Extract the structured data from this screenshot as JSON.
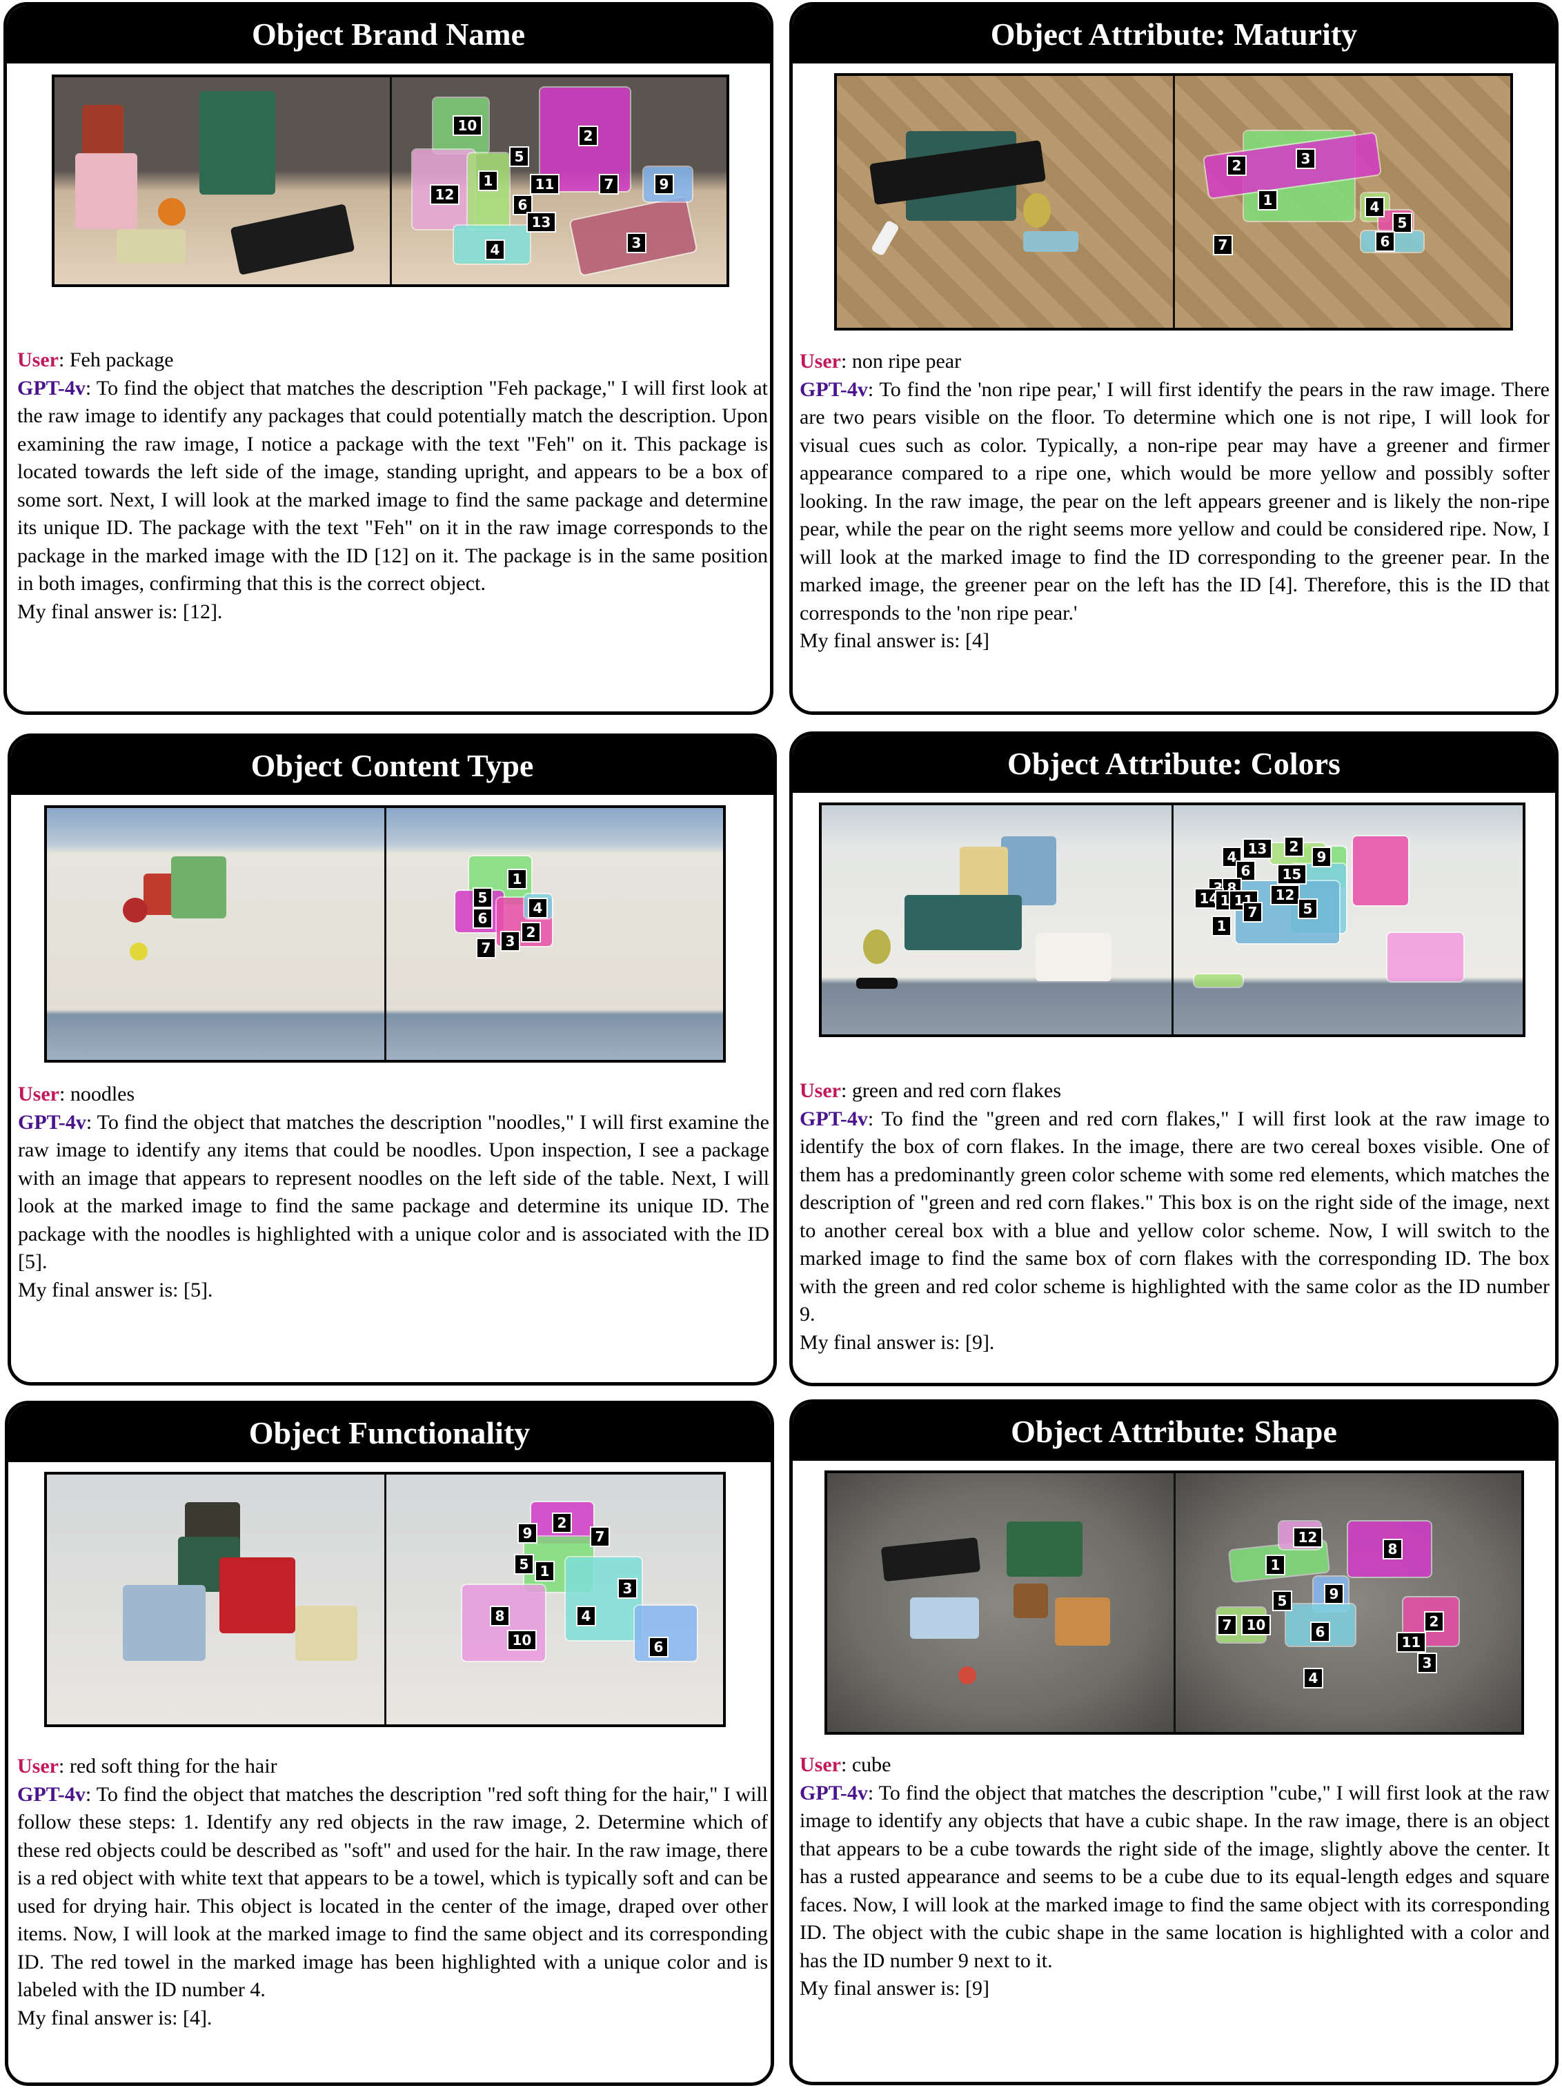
{
  "labels": {
    "user": "User",
    "gpt": "GPT-4v"
  },
  "panels": {
    "p1": {
      "title": "Object Brand Name",
      "query": "Feh package",
      "response": "To find the object that matches the description \"Feh package,\" I will first look at the raw image to identify any packages that could potentially match the description. Upon examining the raw image, I notice a package with the text \"Feh\" on it. This package is located towards the left side of the image, standing upright, and appears to be a box of some sort. Next, I will look at the marked image to find the same package and determine its unique ID. The package with the text \"Feh\" on it in the raw image corresponds to the package in the marked image with the ID [12] on it. The package is in the same position in both images, confirming that this is the correct object.",
      "final": "My final answer is: [12].",
      "ids": [
        "10",
        "2",
        "5",
        "1",
        "11",
        "7",
        "9",
        "12",
        "6",
        "13",
        "4",
        "3"
      ]
    },
    "p2": {
      "title": "Object Attribute: Maturity",
      "query": "non ripe pear",
      "response": "To find the 'non ripe pear,' I will first identify the pears in the raw image. There are two pears visible on the floor. To determine which one is not ripe, I will look for visual cues such as color. Typically, a non-ripe pear may have a greener and firmer appearance compared to a ripe one, which would be more yellow and possibly softer looking. In the raw image, the pear on the left appears greener and is likely the non-ripe pear, while the pear on the right seems more yellow and could be considered ripe. Now, I will look at the marked image to find the ID corresponding to the greener pear. In the marked image, the greener pear on the left has the ID [4]. Therefore, this is the ID that corresponds to the 'non ripe pear.'",
      "final": "My final answer is: [4]",
      "ids": [
        "2",
        "3",
        "1",
        "4",
        "5",
        "6",
        "7"
      ]
    },
    "p3": {
      "title": "Object Content Type",
      "query": "noodles",
      "response": "To find the object that matches the description \"noodles,\" I will first examine the raw image to identify any items that could be noodles. Upon inspection, I see a package with an image that appears to represent noodles on the left side of the table. Next, I will look at the marked image to find the same package and determine its unique ID. The package with the noodles is highlighted with a unique color and is associated with the ID [5].",
      "final": "My final answer is: [5].",
      "ids": [
        "1",
        "5",
        "6",
        "4",
        "2",
        "3",
        "7"
      ]
    },
    "p4": {
      "title": "Object Attribute: Colors",
      "query": "green and red corn flakes",
      "response": "To find the \"green and red corn flakes,\" I will first look at the raw image to identify the box of corn flakes. In the image, there are two cereal boxes visible. One of them has a predominantly green color scheme with some red elements, which matches the description of \"green and red corn flakes.\" This box is on the right side of the image, next to another cereal box with a blue and yellow color scheme. Now, I will switch to the marked image to find the same box of corn flakes with the corresponding ID. The box with the green and red color scheme is highlighted with the same color as the ID number 9.",
      "final": "My final answer is: [9].",
      "ids": [
        "4",
        "13",
        "2",
        "9",
        "6",
        "15",
        "3",
        "8",
        "14",
        "10",
        "11",
        "12",
        "7",
        "1",
        "5"
      ]
    },
    "p5": {
      "title": "Object Functionality",
      "query": "red soft thing for the hair",
      "response": "To find the object that matches the description \"red soft thing for the hair,\" I will follow these steps: 1. Identify any red objects in the raw image, 2. Determine which of these red objects could be described as \"soft\" and used for the hair. In the raw image, there is a red object with white text that appears to be a towel, which is typically soft and can be used for drying hair. This object is located in the center of the image, draped over other items. Now, I will look at the marked image to find the same object and its corresponding ID. The red towel in the marked image has been highlighted with a unique color and is labeled with the ID number 4.",
      "final": "My final answer is: [4].",
      "ids": [
        "2",
        "9",
        "7",
        "5",
        "1",
        "3",
        "8",
        "4",
        "10",
        "6"
      ]
    },
    "p6": {
      "title": "Object Attribute: Shape",
      "query": "cube",
      "response": "To find the object that matches the description \"cube,\" I will first look at the raw image to identify any objects that have a cubic shape. In the raw image, there is an object that appears to be a cube towards the right side of the image, slightly above the center. It has a rusted appearance and seems to be a cube due to its equal-length edges and square faces. Now, I will look at the marked image to find the same object with its corresponding ID. The object with the cubic shape in the same location is highlighted with a color and has the ID number 9 next to it.",
      "final": "My final answer is: [9]",
      "ids": [
        "12",
        "8",
        "1",
        "9",
        "5",
        "2",
        "7",
        "10",
        "6",
        "11",
        "3",
        "4"
      ]
    }
  }
}
